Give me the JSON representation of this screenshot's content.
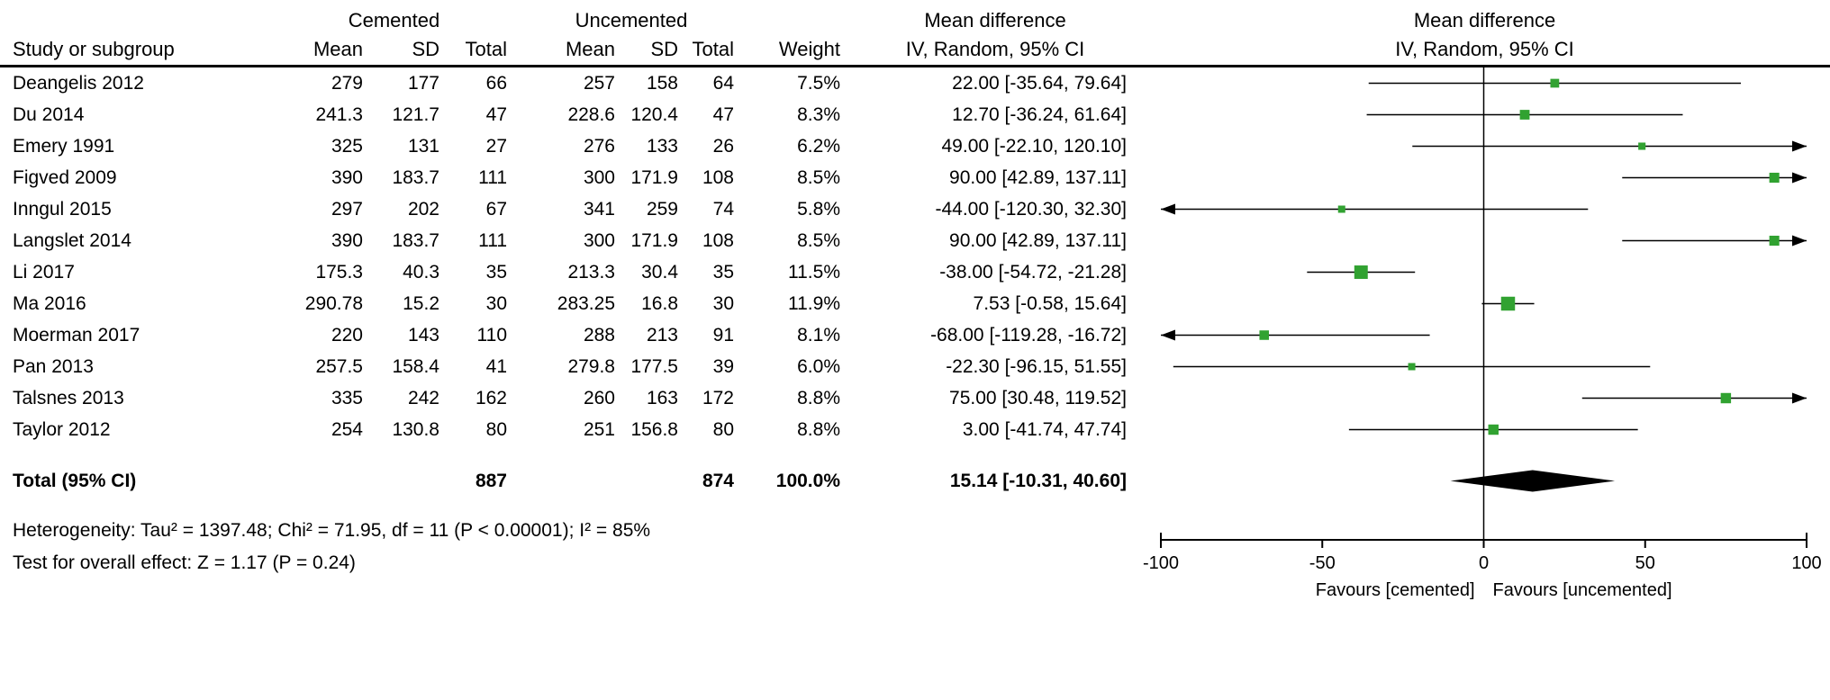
{
  "colors": {
    "marker": "#31a231",
    "diamond": "#000000",
    "line": "#000000"
  },
  "header": {
    "group_cemented": "Cemented",
    "group_uncemented": "Uncemented",
    "mean_difference_text_col": "Mean difference",
    "mean_difference_plot_col": "Mean difference",
    "study": "Study or subgroup",
    "mean": "Mean",
    "sd": "SD",
    "total": "Total",
    "weight": "Weight",
    "ci_method_text_col": "IV, Random, 95% CI",
    "ci_method_plot_col": "IV, Random, 95% CI"
  },
  "chart_data": {
    "type": "forest",
    "effect_measure": "Mean difference",
    "model": "IV, Random, 95% CI",
    "x_axis": {
      "min": -100,
      "max": 100,
      "ticks": [
        -100,
        -50,
        0,
        50,
        100
      ],
      "label_left": "Favours [cemented]",
      "label_right": "Favours [uncemented]"
    },
    "studies": [
      {
        "name": "Deangelis 2012",
        "c_mean": "279",
        "c_sd": "177",
        "c_total": "66",
        "u_mean": "257",
        "u_sd": "158",
        "u_total": "64",
        "weight": "7.5%",
        "ci_text": "22.00 [-35.64, 79.64]",
        "md": 22.0,
        "lo": -35.64,
        "hi": 79.64
      },
      {
        "name": "Du 2014",
        "c_mean": "241.3",
        "c_sd": "121.7",
        "c_total": "47",
        "u_mean": "228.6",
        "u_sd": "120.4",
        "u_total": "47",
        "weight": "8.3%",
        "ci_text": "12.70 [-36.24, 61.64]",
        "md": 12.7,
        "lo": -36.24,
        "hi": 61.64
      },
      {
        "name": "Emery 1991",
        "c_mean": "325",
        "c_sd": "131",
        "c_total": "27",
        "u_mean": "276",
        "u_sd": "133",
        "u_total": "26",
        "weight": "6.2%",
        "ci_text": "49.00 [-22.10, 120.10]",
        "md": 49.0,
        "lo": -22.1,
        "hi": 120.1
      },
      {
        "name": "Figved 2009",
        "c_mean": "390",
        "c_sd": "183.7",
        "c_total": "111",
        "u_mean": "300",
        "u_sd": "171.9",
        "u_total": "108",
        "weight": "8.5%",
        "ci_text": "90.00 [42.89, 137.11]",
        "md": 90.0,
        "lo": 42.89,
        "hi": 137.11
      },
      {
        "name": "Inngul 2015",
        "c_mean": "297",
        "c_sd": "202",
        "c_total": "67",
        "u_mean": "341",
        "u_sd": "259",
        "u_total": "74",
        "weight": "5.8%",
        "ci_text": "-44.00 [-120.30, 32.30]",
        "md": -44.0,
        "lo": -120.3,
        "hi": 32.3
      },
      {
        "name": "Langslet 2014",
        "c_mean": "390",
        "c_sd": "183.7",
        "c_total": "111",
        "u_mean": "300",
        "u_sd": "171.9",
        "u_total": "108",
        "weight": "8.5%",
        "ci_text": "90.00 [42.89, 137.11]",
        "md": 90.0,
        "lo": 42.89,
        "hi": 137.11
      },
      {
        "name": "Li 2017",
        "c_mean": "175.3",
        "c_sd": "40.3",
        "c_total": "35",
        "u_mean": "213.3",
        "u_sd": "30.4",
        "u_total": "35",
        "weight": "11.5%",
        "ci_text": "-38.00 [-54.72, -21.28]",
        "md": -38.0,
        "lo": -54.72,
        "hi": -21.28
      },
      {
        "name": "Ma 2016",
        "c_mean": "290.78",
        "c_sd": "15.2",
        "c_total": "30",
        "u_mean": "283.25",
        "u_sd": "16.8",
        "u_total": "30",
        "weight": "11.9%",
        "ci_text": "7.53 [-0.58, 15.64]",
        "md": 7.53,
        "lo": -0.58,
        "hi": 15.64
      },
      {
        "name": "Moerman 2017",
        "c_mean": "220",
        "c_sd": "143",
        "c_total": "110",
        "u_mean": "288",
        "u_sd": "213",
        "u_total": "91",
        "weight": "8.1%",
        "ci_text": "-68.00 [-119.28, -16.72]",
        "md": -68.0,
        "lo": -119.28,
        "hi": -16.72
      },
      {
        "name": "Pan 2013",
        "c_mean": "257.5",
        "c_sd": "158.4",
        "c_total": "41",
        "u_mean": "279.8",
        "u_sd": "177.5",
        "u_total": "39",
        "weight": "6.0%",
        "ci_text": "-22.30 [-96.15, 51.55]",
        "md": -22.3,
        "lo": -96.15,
        "hi": 51.55
      },
      {
        "name": "Talsnes 2013",
        "c_mean": "335",
        "c_sd": "242",
        "c_total": "162",
        "u_mean": "260",
        "u_sd": "163",
        "u_total": "172",
        "weight": "8.8%",
        "ci_text": "75.00 [30.48, 119.52]",
        "md": 75.0,
        "lo": 30.48,
        "hi": 119.52
      },
      {
        "name": "Taylor 2012",
        "c_mean": "254",
        "c_sd": "130.8",
        "c_total": "80",
        "u_mean": "251",
        "u_sd": "156.8",
        "u_total": "80",
        "weight": "8.8%",
        "ci_text": "3.00 [-41.74, 47.74]",
        "md": 3.0,
        "lo": -41.74,
        "hi": 47.74
      }
    ],
    "total": {
      "label": "Total (95% CI)",
      "c_total": "887",
      "u_total": "874",
      "weight": "100.0%",
      "ci_text": "15.14 [-10.31, 40.60]",
      "md": 15.14,
      "lo": -10.31,
      "hi": 40.6
    },
    "heterogeneity": "Heterogeneity: Tau² = 1397.48; Chi² = 71.95, df = 11 (P < 0.00001); I² = 85%",
    "overall_effect": "Test for overall effect: Z = 1.17 (P = 0.24)"
  }
}
